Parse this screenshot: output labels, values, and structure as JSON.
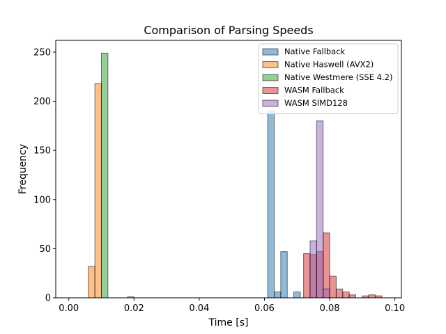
{
  "chart_data": {
    "type": "histogram",
    "title": "Comparison of Parsing Speeds",
    "xlabel": "Time [s]",
    "ylabel": "Frequency",
    "xlim": [
      -0.004,
      0.102
    ],
    "ylim": [
      0,
      262
    ],
    "xticks": [
      0.0,
      0.02,
      0.04,
      0.06,
      0.08,
      0.1
    ],
    "xtick_labels": [
      "0.00",
      "0.02",
      "0.04",
      "0.06",
      "0.08",
      "0.10"
    ],
    "yticks": [
      0,
      50,
      100,
      150,
      200,
      250
    ],
    "ytick_labels": [
      "0",
      "50",
      "100",
      "150",
      "200",
      "250"
    ],
    "grid": false,
    "legend_position": "top-right",
    "bar_alpha": 0.5,
    "bar_edge_color": "#000000",
    "series": [
      {
        "name": "Native Fallback",
        "color": "#1f77b4",
        "bins": [
          [
            0.061,
            0.063,
            190
          ],
          [
            0.063,
            0.065,
            6
          ],
          [
            0.065,
            0.067,
            47
          ],
          [
            0.069,
            0.071,
            6
          ]
        ]
      },
      {
        "name": "Native Haswell (AVX2)",
        "color": "#ff7f0e",
        "bins": [
          [
            0.006,
            0.008,
            32
          ],
          [
            0.008,
            0.01,
            218
          ]
        ]
      },
      {
        "name": "Native Westmere (SSE 4.2)",
        "color": "#2ca02c",
        "bins": [
          [
            0.01,
            0.012,
            249
          ],
          [
            0.018,
            0.02,
            1
          ]
        ]
      },
      {
        "name": "WASM Fallback",
        "color": "#d62728",
        "bins": [
          [
            0.072,
            0.074,
            45
          ],
          [
            0.074,
            0.076,
            44
          ],
          [
            0.076,
            0.078,
            47
          ],
          [
            0.078,
            0.08,
            66
          ],
          [
            0.08,
            0.082,
            22
          ],
          [
            0.082,
            0.084,
            9
          ],
          [
            0.084,
            0.086,
            6
          ],
          [
            0.086,
            0.088,
            3
          ],
          [
            0.09,
            0.092,
            2
          ],
          [
            0.092,
            0.094,
            3
          ],
          [
            0.094,
            0.096,
            2
          ]
        ]
      },
      {
        "name": "WASM SIMD128",
        "color": "#9467bd",
        "bins": [
          [
            0.074,
            0.076,
            58
          ],
          [
            0.076,
            0.078,
            180
          ],
          [
            0.078,
            0.08,
            9
          ]
        ]
      }
    ]
  }
}
